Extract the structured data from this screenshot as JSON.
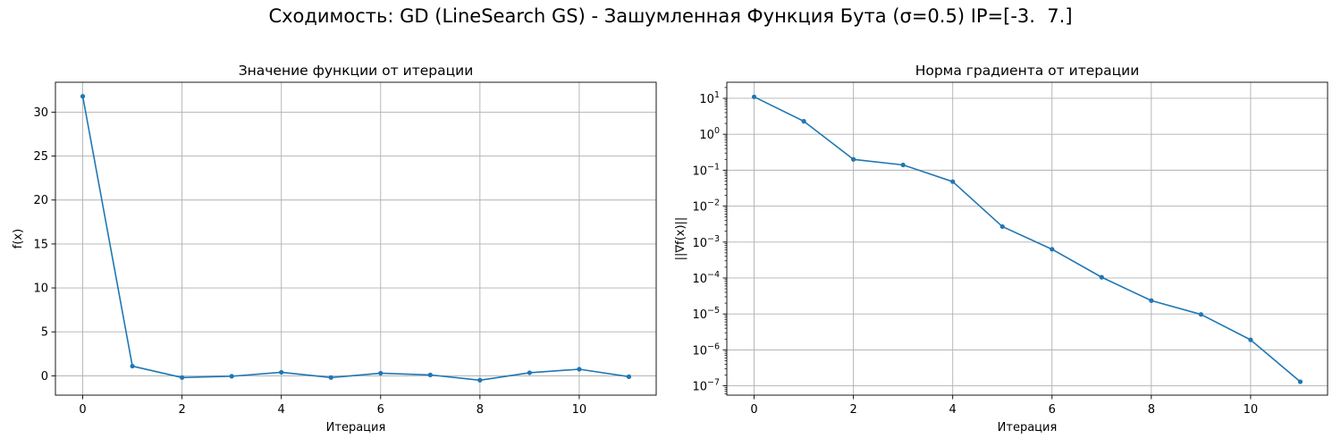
{
  "figure": {
    "suptitle": "Сходимость: GD (LineSearch GS) - Зашумленная Функция Бута (σ=0.5) IP=[-3.  7.]"
  },
  "chart_data": [
    {
      "type": "line",
      "title": "Значение функции от итерации",
      "xlabel": "Итерация",
      "ylabel": "f(x)",
      "x": [
        0,
        1,
        2,
        3,
        4,
        5,
        6,
        7,
        8,
        9,
        10,
        11
      ],
      "series": [
        {
          "values": [
            31.8,
            1.1,
            -0.2,
            -0.05,
            0.4,
            -0.2,
            0.3,
            0.1,
            -0.5,
            0.35,
            0.75,
            -0.1
          ],
          "color": "#1f77b4",
          "marker": "circle"
        }
      ],
      "xlim": [
        -0.55,
        11.55
      ],
      "ylim": [
        -2.2,
        33.4
      ],
      "xticks": [
        0,
        2,
        4,
        6,
        8,
        10
      ],
      "yticks": [
        0,
        5,
        10,
        15,
        20,
        25,
        30
      ],
      "grid": true,
      "yscale": "linear"
    },
    {
      "type": "line",
      "title": "Норма градиента от итерации",
      "xlabel": "Итерация",
      "ylabel": "||∇f(x)||",
      "x": [
        0,
        1,
        2,
        3,
        4,
        5,
        6,
        7,
        8,
        9,
        10,
        11
      ],
      "series": [
        {
          "values": [
            11,
            2.3,
            0.2,
            0.14,
            0.048,
            0.0027,
            0.00063,
            0.000105,
            2.35e-05,
            9.7e-06,
            1.9e-06,
            1.3e-07
          ],
          "color": "#1f77b4",
          "marker": "circle"
        }
      ],
      "xlim": [
        -0.55,
        11.55
      ],
      "ylim": [
        5.5e-08,
        28
      ],
      "xticks": [
        0,
        2,
        4,
        6,
        8,
        10
      ],
      "yticks": [
        10.0,
        1.0,
        0.1,
        0.01,
        0.001,
        0.0001,
        1e-05,
        1e-06,
        1e-07
      ],
      "yticklabels": [
        {
          "base": "10",
          "exp": "1"
        },
        {
          "base": "10",
          "exp": "0"
        },
        {
          "base": "10",
          "exp": "−1"
        },
        {
          "base": "10",
          "exp": "−2"
        },
        {
          "base": "10",
          "exp": "−3"
        },
        {
          "base": "10",
          "exp": "−4"
        },
        {
          "base": "10",
          "exp": "−5"
        },
        {
          "base": "10",
          "exp": "−6"
        },
        {
          "base": "10",
          "exp": "−7"
        }
      ],
      "grid": true,
      "yscale": "log"
    }
  ]
}
